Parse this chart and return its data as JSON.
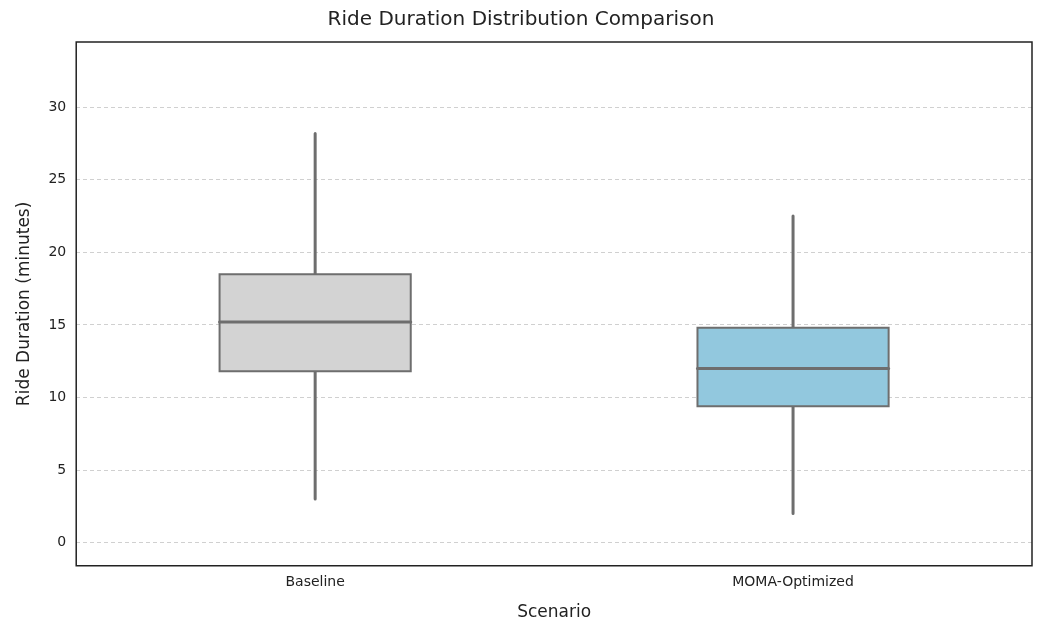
{
  "chart_data": {
    "type": "box",
    "title": "Ride Duration Distribution Comparison",
    "xlabel": "Scenario",
    "ylabel": "Ride Duration (minutes)",
    "categories": [
      "Baseline",
      "MOMA-Optimized"
    ],
    "colors": [
      "#d3d3d3",
      "#92c8de"
    ],
    "boxes": [
      {
        "low": 3,
        "q1": 11.8,
        "median": 15.2,
        "q3": 18.5,
        "high": 28.2
      },
      {
        "low": 2,
        "q1": 9.4,
        "median": 12,
        "q3": 14.8,
        "high": 22.5
      }
    ],
    "ylim": [
      -1.6,
      34.5
    ],
    "yticks": [
      0,
      5,
      10,
      15,
      20,
      25,
      30
    ],
    "grid": "y",
    "legend": false
  }
}
